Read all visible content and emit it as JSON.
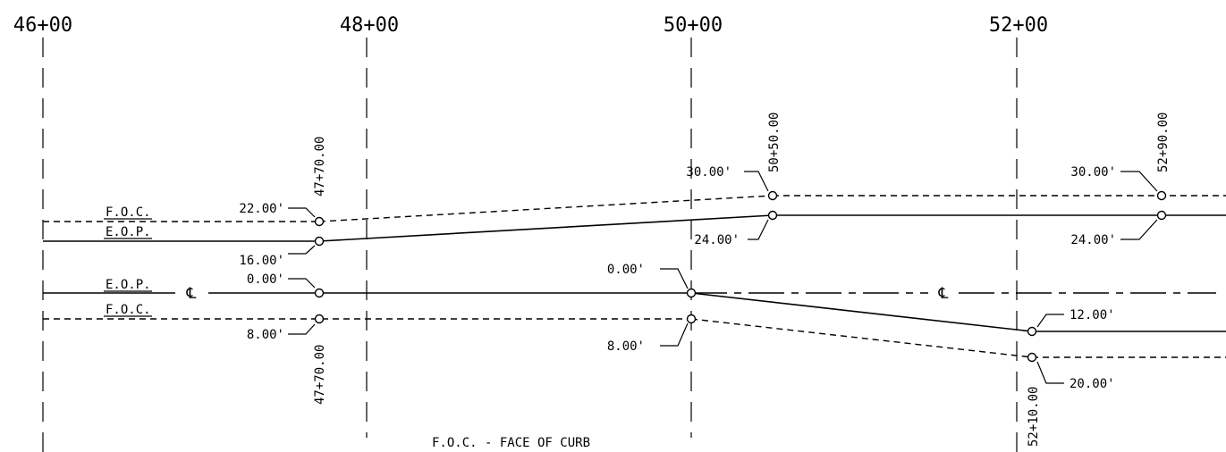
{
  "station_labels": [
    "46+00",
    "48+00",
    "50+00",
    "52+00"
  ],
  "line_labels": {
    "foc_top": "F.O.C.",
    "eop_top": "E.O.P.",
    "eop_bottom": "E.O.P.",
    "foc_bottom": "F.O.C."
  },
  "centerline_symbol": "℄",
  "offsets": {
    "p1_foc": "22.00'",
    "p1_eop": "16.00'",
    "p1_cl": "0.00'",
    "p1_foc_bottom": "8.00'",
    "p2_cl": "0.00'",
    "p2_foc_bottom": "8.00'",
    "p3_foc": "30.00'",
    "p3_eop": "24.00'",
    "p4_eop": "12.00'",
    "p4_foc": "20.00'",
    "p5_foc": "30.00'",
    "p5_eop": "24.00'"
  },
  "point_stations": {
    "p1_top": "47+70.00",
    "p1_bottom": "47+70.00",
    "p3": "50+50.00",
    "p4": "52+10.00",
    "p5": "52+90.00"
  },
  "note": "F.O.C. - FACE OF CURB"
}
